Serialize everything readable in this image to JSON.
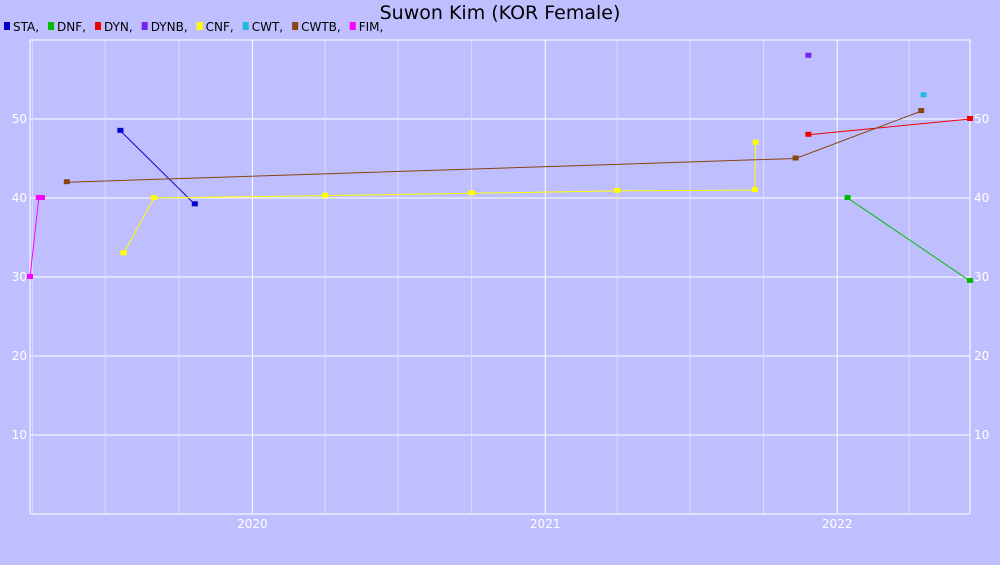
{
  "chart_data": {
    "type": "line",
    "title": "Suwon Kim (KOR Female)",
    "xlabel": "",
    "ylabel": "",
    "x_axis": {
      "kind": "date",
      "min": "2019-03-29",
      "max": "2022-06-16",
      "tick_labels": [
        "2020",
        "2021",
        "2022"
      ],
      "ticks": [
        "2020-01-01",
        "2021-01-01",
        "2022-01-01"
      ],
      "minor_ticks": [
        "2019-04-01",
        "2019-07-01",
        "2019-10-01",
        "2020-04-01",
        "2020-07-01",
        "2020-10-01",
        "2021-04-01",
        "2021-07-01",
        "2021-10-01",
        "2022-04-01"
      ]
    },
    "y_axis": {
      "min": 0,
      "max": 60,
      "ticks": [
        10,
        20,
        30,
        40,
        50
      ],
      "tick_labels": [
        "10",
        "20",
        "30",
        "40",
        "50"
      ],
      "labels_on": "both"
    },
    "grid": true,
    "legend_position": "top-left",
    "series": [
      {
        "name": "STA",
        "color": "#0000cc",
        "points": [
          [
            "2019-07-20",
            48.5
          ],
          [
            "2019-10-21",
            39.2
          ]
        ]
      },
      {
        "name": "DNF",
        "color": "#00bb00",
        "points": [
          [
            "2022-01-14",
            40
          ],
          [
            "2022-06-16",
            29.5
          ]
        ]
      },
      {
        "name": "DYN",
        "color": "#ee0000",
        "points": [
          [
            "2021-11-26",
            48
          ],
          [
            "2022-06-16",
            50
          ]
        ]
      },
      {
        "name": "DYNB",
        "color": "#7722ee",
        "points": [
          [
            "2021-11-26",
            58
          ]
        ]
      },
      {
        "name": "CNF",
        "color": "#ffff00",
        "points": [
          [
            "2019-07-24",
            33
          ],
          [
            "2019-08-31",
            40
          ],
          [
            "2020-04-01",
            40.3
          ],
          [
            "2020-10-01",
            40.6
          ],
          [
            "2021-04-01",
            40.9
          ],
          [
            "2021-09-20",
            41
          ],
          [
            "2021-09-21",
            47
          ]
        ]
      },
      {
        "name": "CWT",
        "color": "#22bbdd",
        "points": [
          [
            "2022-04-19",
            53
          ]
        ]
      },
      {
        "name": "CWTB",
        "color": "#884411",
        "points": [
          [
            "2019-05-14",
            42
          ],
          [
            "2021-11-10",
            45
          ],
          [
            "2022-04-16",
            51
          ]
        ]
      },
      {
        "name": "FIM",
        "color": "#ff00ff",
        "points": [
          [
            "2019-03-29",
            30
          ],
          [
            "2019-04-09",
            40
          ],
          [
            "2019-04-13",
            40
          ]
        ]
      }
    ]
  }
}
